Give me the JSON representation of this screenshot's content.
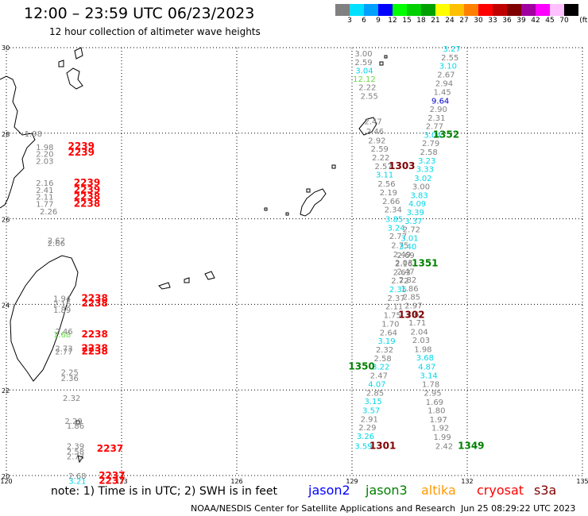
{
  "header": {
    "title": "12:00 – 23:59 UTC 06/23/2023",
    "subtitle": "12 hour collection of altimeter wave heights"
  },
  "legend": {
    "unit": "(ft)",
    "ticks": [
      "3",
      "6",
      "9",
      "12",
      "15",
      "18",
      "21",
      "24",
      "27",
      "30",
      "33",
      "36",
      "39",
      "42",
      "45",
      "70"
    ],
    "colors": [
      "#808080",
      "#00e0ff",
      "#00a0ff",
      "#0000ff",
      "#00ff00",
      "#00d000",
      "#00a000",
      "#ffff00",
      "#ffc000",
      "#ff8000",
      "#ff0000",
      "#c00000",
      "#800000",
      "#a000a0",
      "#ff00ff",
      "#ffc0ff",
      "#000000"
    ]
  },
  "axes": {
    "lat_labels": [
      "30",
      "28",
      "26",
      "24",
      "22",
      "20"
    ],
    "lon_labels": [
      "120",
      "123",
      "126",
      "129",
      "132",
      "135"
    ]
  },
  "footer": {
    "note": "note: 1) Time is in UTC; 2) SWH is in feet",
    "satellites": [
      {
        "name": "jason2",
        "color": "#0000ff"
      },
      {
        "name": "jason3",
        "color": "#008000"
      },
      {
        "name": "altika",
        "color": "#ff9900"
      },
      {
        "name": "cryosat",
        "color": "#ff0000"
      },
      {
        "name": "s3a",
        "color": "#800000"
      }
    ],
    "credit": "NOAA/NESDIS Center for Satellite Applications and Research",
    "generated": "Jun 25 08:29:22 UTC 2023"
  },
  "observations": [
    {
      "v": "3.00",
      "c": "#808080",
      "lon": 129.3,
      "lat": 29.87
    },
    {
      "v": "2.59",
      "c": "#808080",
      "lon": 129.3,
      "lat": 29.67
    },
    {
      "v": "3.04",
      "c": "#00d8e8",
      "lon": 129.32,
      "lat": 29.47
    },
    {
      "v": "12.12",
      "c": "#66dd44",
      "lon": 129.32,
      "lat": 29.28
    },
    {
      "v": "2.22",
      "c": "#808080",
      "lon": 129.4,
      "lat": 29.08
    },
    {
      "v": "2.55",
      "c": "#808080",
      "lon": 129.45,
      "lat": 28.88
    },
    {
      "v": "2.47",
      "c": "#808080",
      "lon": 129.55,
      "lat": 28.28
    },
    {
      "v": "2.46",
      "c": "#808080",
      "lon": 129.6,
      "lat": 28.05
    },
    {
      "v": "2.92",
      "c": "#808080",
      "lon": 129.65,
      "lat": 27.84
    },
    {
      "v": "2.59",
      "c": "#808080",
      "lon": 129.72,
      "lat": 27.64
    },
    {
      "v": "2.22",
      "c": "#808080",
      "lon": 129.75,
      "lat": 27.44
    },
    {
      "v": "2.57",
      "c": "#808080",
      "lon": 129.82,
      "lat": 27.24
    },
    {
      "v": "1303",
      "c": "#800000",
      "lon": 130.3,
      "lat": 27.24,
      "id": 1
    },
    {
      "v": "3.11",
      "c": "#00d8e8",
      "lon": 129.85,
      "lat": 27.04
    },
    {
      "v": "2.56",
      "c": "#808080",
      "lon": 129.9,
      "lat": 26.83
    },
    {
      "v": "2.19",
      "c": "#808080",
      "lon": 129.95,
      "lat": 26.62
    },
    {
      "v": "2.66",
      "c": "#808080",
      "lon": 130.02,
      "lat": 26.42
    },
    {
      "v": "2.34",
      "c": "#808080",
      "lon": 130.07,
      "lat": 26.22
    },
    {
      "v": "3.85",
      "c": "#00d8e8",
      "lon": 130.1,
      "lat": 26.0
    },
    {
      "v": "3.24",
      "c": "#00d8e8",
      "lon": 130.15,
      "lat": 25.8
    },
    {
      "v": "2.77",
      "c": "#808080",
      "lon": 130.2,
      "lat": 25.6
    },
    {
      "v": "2.75",
      "c": "#808080",
      "lon": 130.25,
      "lat": 25.39
    },
    {
      "v": "2.49",
      "c": "#808080",
      "lon": 130.3,
      "lat": 25.18
    },
    {
      "v": "2.03",
      "c": "#808080",
      "lon": 130.35,
      "lat": 24.98
    },
    {
      "v": "2.47",
      "c": "#808080",
      "lon": 130.4,
      "lat": 24.78
    },
    {
      "v": "2.82",
      "c": "#808080",
      "lon": 130.45,
      "lat": 24.58
    },
    {
      "v": "1.86",
      "c": "#808080",
      "lon": 130.5,
      "lat": 24.38
    },
    {
      "v": "2.85",
      "c": "#808080",
      "lon": 130.55,
      "lat": 24.18
    },
    {
      "v": "2.97",
      "c": "#808080",
      "lon": 130.6,
      "lat": 23.98
    },
    {
      "v": "2.67",
      "c": "#808080",
      "lon": 130.65,
      "lat": 23.78
    },
    {
      "v": "1.71",
      "c": "#808080",
      "lon": 130.7,
      "lat": 23.58
    },
    {
      "v": "2.04",
      "c": "#808080",
      "lon": 130.75,
      "lat": 23.37
    },
    {
      "v": "2.03",
      "c": "#808080",
      "lon": 130.8,
      "lat": 23.17
    },
    {
      "v": "1.98",
      "c": "#808080",
      "lon": 130.85,
      "lat": 22.96
    },
    {
      "v": "3.68",
      "c": "#00d8e8",
      "lon": 130.9,
      "lat": 22.76
    },
    {
      "v": "4.87",
      "c": "#00d8e8",
      "lon": 130.95,
      "lat": 22.55
    },
    {
      "v": "3.14",
      "c": "#00d8e8",
      "lon": 131.0,
      "lat": 22.35
    },
    {
      "v": "1.78",
      "c": "#808080",
      "lon": 131.05,
      "lat": 22.14
    },
    {
      "v": "2.95",
      "c": "#808080",
      "lon": 131.1,
      "lat": 21.94
    },
    {
      "v": "1.69",
      "c": "#808080",
      "lon": 131.15,
      "lat": 21.73
    },
    {
      "v": "1.80",
      "c": "#808080",
      "lon": 131.2,
      "lat": 21.53
    },
    {
      "v": "1.97",
      "c": "#808080",
      "lon": 131.25,
      "lat": 21.32
    },
    {
      "v": "1.92",
      "c": "#808080",
      "lon": 131.3,
      "lat": 21.12
    },
    {
      "v": "1.99",
      "c": "#808080",
      "lon": 131.35,
      "lat": 20.91
    },
    {
      "v": "2.42",
      "c": "#808080",
      "lon": 131.4,
      "lat": 20.7
    },
    {
      "v": "1349",
      "c": "#008000",
      "lon": 132.1,
      "lat": 20.7,
      "id": 1
    },
    {
      "v": "3.27",
      "c": "#00d8e8",
      "lon": 131.6,
      "lat": 29.98
    },
    {
      "v": "2.55",
      "c": "#808080",
      "lon": 131.55,
      "lat": 29.78
    },
    {
      "v": "3.10",
      "c": "#00d8e8",
      "lon": 131.5,
      "lat": 29.58
    },
    {
      "v": "2.67",
      "c": "#808080",
      "lon": 131.45,
      "lat": 29.38
    },
    {
      "v": "2.94",
      "c": "#808080",
      "lon": 131.4,
      "lat": 29.17
    },
    {
      "v": "1.45",
      "c": "#808080",
      "lon": 131.35,
      "lat": 28.97
    },
    {
      "v": "9.64",
      "c": "#0000cc",
      "lon": 131.3,
      "lat": 28.77
    },
    {
      "v": "2.90",
      "c": "#808080",
      "lon": 131.25,
      "lat": 28.57
    },
    {
      "v": "2.31",
      "c": "#808080",
      "lon": 131.2,
      "lat": 28.37
    },
    {
      "v": "2.77",
      "c": "#808080",
      "lon": 131.15,
      "lat": 28.17
    },
    {
      "v": "3.04",
      "c": "#00d8e8",
      "lon": 131.1,
      "lat": 27.97
    },
    {
      "v": "1352",
      "c": "#008000",
      "lon": 131.45,
      "lat": 27.97,
      "id": 1
    },
    {
      "v": "2.79",
      "c": "#808080",
      "lon": 131.05,
      "lat": 27.77
    },
    {
      "v": "2.58",
      "c": "#808080",
      "lon": 131.0,
      "lat": 27.57
    },
    {
      "v": "3.23",
      "c": "#00d8e8",
      "lon": 130.95,
      "lat": 27.37
    },
    {
      "v": "3.33",
      "c": "#00d8e8",
      "lon": 130.9,
      "lat": 27.17
    },
    {
      "v": "3.02",
      "c": "#00d8e8",
      "lon": 130.85,
      "lat": 26.96
    },
    {
      "v": "3.00",
      "c": "#808080",
      "lon": 130.8,
      "lat": 26.76
    },
    {
      "v": "3.83",
      "c": "#00d8e8",
      "lon": 130.75,
      "lat": 26.56
    },
    {
      "v": "4.09",
      "c": "#00d8e8",
      "lon": 130.7,
      "lat": 26.36
    },
    {
      "v": "3.39",
      "c": "#00d8e8",
      "lon": 130.65,
      "lat": 26.16
    },
    {
      "v": "3.37",
      "c": "#00d8e8",
      "lon": 130.6,
      "lat": 25.96
    },
    {
      "v": "2.72",
      "c": "#808080",
      "lon": 130.55,
      "lat": 25.76
    },
    {
      "v": "3.01",
      "c": "#00d8e8",
      "lon": 130.5,
      "lat": 25.56
    },
    {
      "v": "3.40",
      "c": "#00d8e8",
      "lon": 130.45,
      "lat": 25.36
    },
    {
      "v": "2.69",
      "c": "#808080",
      "lon": 130.4,
      "lat": 25.16
    },
    {
      "v": "2.16",
      "c": "#808080",
      "lon": 130.35,
      "lat": 24.96
    },
    {
      "v": "1351",
      "c": "#008000",
      "lon": 130.9,
      "lat": 24.96,
      "id": 1
    },
    {
      "v": "2.63",
      "c": "#808080",
      "lon": 130.3,
      "lat": 24.76
    },
    {
      "v": "2.72",
      "c": "#808080",
      "lon": 130.25,
      "lat": 24.56
    },
    {
      "v": "2.35",
      "c": "#00d8e8",
      "lon": 130.2,
      "lat": 24.36
    },
    {
      "v": "2.37",
      "c": "#808080",
      "lon": 130.15,
      "lat": 24.16
    },
    {
      "v": "2.11",
      "c": "#808080",
      "lon": 130.1,
      "lat": 23.96
    },
    {
      "v": "1.75",
      "c": "#808080",
      "lon": 130.05,
      "lat": 23.76
    },
    {
      "v": "1302",
      "c": "#800000",
      "lon": 130.55,
      "lat": 23.76,
      "id": 1
    },
    {
      "v": "1.70",
      "c": "#808080",
      "lon": 130.0,
      "lat": 23.55
    },
    {
      "v": "2.64",
      "c": "#808080",
      "lon": 129.95,
      "lat": 23.35
    },
    {
      "v": "3.19",
      "c": "#00d8e8",
      "lon": 129.9,
      "lat": 23.15
    },
    {
      "v": "2.32",
      "c": "#808080",
      "lon": 129.85,
      "lat": 22.95
    },
    {
      "v": "2.58",
      "c": "#808080",
      "lon": 129.8,
      "lat": 22.75
    },
    {
      "v": "3.22",
      "c": "#00d8e8",
      "lon": 129.75,
      "lat": 22.55
    },
    {
      "v": "1350",
      "c": "#008000",
      "lon": 129.25,
      "lat": 22.55,
      "id": 1
    },
    {
      "v": "2.47",
      "c": "#808080",
      "lon": 129.7,
      "lat": 22.35
    },
    {
      "v": "4.07",
      "c": "#00d8e8",
      "lon": 129.65,
      "lat": 22.14
    },
    {
      "v": "2.85",
      "c": "#808080",
      "lon": 129.6,
      "lat": 21.94
    },
    {
      "v": "3.15",
      "c": "#00d8e8",
      "lon": 129.55,
      "lat": 21.74
    },
    {
      "v": "3.57",
      "c": "#00d8e8",
      "lon": 129.5,
      "lat": 21.53
    },
    {
      "v": "2.91",
      "c": "#808080",
      "lon": 129.45,
      "lat": 21.33
    },
    {
      "v": "2.29",
      "c": "#808080",
      "lon": 129.4,
      "lat": 21.13
    },
    {
      "v": "3.26",
      "c": "#00d8e8",
      "lon": 129.35,
      "lat": 20.93
    },
    {
      "v": "3.59",
      "c": "#00d8e8",
      "lon": 129.3,
      "lat": 20.7
    },
    {
      "v": "1301",
      "c": "#800000",
      "lon": 129.8,
      "lat": 20.7,
      "id": 1
    },
    {
      "v": "1.98",
      "c": "#808080",
      "lon": 120.7,
      "lat": 28.0
    },
    {
      "v": "1.98",
      "c": "#808080",
      "lon": 121.0,
      "lat": 27.68
    },
    {
      "v": "2.20",
      "c": "#808080",
      "lon": 121.0,
      "lat": 27.52
    },
    {
      "v": "2.03",
      "c": "#808080",
      "lon": 121.0,
      "lat": 27.36
    },
    {
      "v": "2239",
      "c": "#ff0000",
      "lon": 121.95,
      "lat": 27.7,
      "id": 1
    },
    {
      "v": "2239",
      "c": "#ff0000",
      "lon": 121.95,
      "lat": 27.55,
      "id": 1
    },
    {
      "v": "2.16",
      "c": "#808080",
      "lon": 121.0,
      "lat": 26.85
    },
    {
      "v": "2.41",
      "c": "#808080",
      "lon": 121.0,
      "lat": 26.68
    },
    {
      "v": "2.11",
      "c": "#808080",
      "lon": 121.0,
      "lat": 26.52
    },
    {
      "v": "1.77",
      "c": "#808080",
      "lon": 121.0,
      "lat": 26.35
    },
    {
      "v": "2.26",
      "c": "#808080",
      "lon": 121.1,
      "lat": 26.18
    },
    {
      "v": "2239",
      "c": "#ff0000",
      "lon": 122.1,
      "lat": 26.85,
      "id": 1
    },
    {
      "v": "2239",
      "c": "#ff0000",
      "lon": 122.1,
      "lat": 26.68,
      "id": 1
    },
    {
      "v": "2238",
      "c": "#ff0000",
      "lon": 122.1,
      "lat": 26.52,
      "id": 1
    },
    {
      "v": "2238",
      "c": "#ff0000",
      "lon": 122.1,
      "lat": 26.35,
      "id": 1
    },
    {
      "v": "2.62",
      "c": "#808080",
      "lon": 121.3,
      "lat": 25.5
    },
    {
      "v": "2.66",
      "c": "#808080",
      "lon": 121.3,
      "lat": 25.44
    },
    {
      "v": "1.94",
      "c": "#808080",
      "lon": 121.45,
      "lat": 24.15
    },
    {
      "v": "2.16",
      "c": "#808080",
      "lon": 121.45,
      "lat": 24.02
    },
    {
      "v": "1.89",
      "c": "#808080",
      "lon": 121.45,
      "lat": 23.88
    },
    {
      "v": "2238",
      "c": "#ff0000",
      "lon": 122.3,
      "lat": 24.15,
      "id": 1
    },
    {
      "v": "2238",
      "c": "#ff0000",
      "lon": 122.3,
      "lat": 24.03,
      "id": 1
    },
    {
      "v": "1.68",
      "c": "#66dd44",
      "lon": 121.45,
      "lat": 23.3
    },
    {
      "v": "2.46",
      "c": "#808080",
      "lon": 121.5,
      "lat": 23.38
    },
    {
      "v": "2238",
      "c": "#ff0000",
      "lon": 122.3,
      "lat": 23.3,
      "id": 1
    },
    {
      "v": "2.73",
      "c": "#808080",
      "lon": 121.5,
      "lat": 22.98
    },
    {
      "v": "2.77",
      "c": "#808080",
      "lon": 121.5,
      "lat": 22.9
    },
    {
      "v": "2238",
      "c": "#ff0000",
      "lon": 122.3,
      "lat": 22.98,
      "id": 1
    },
    {
      "v": "2238",
      "c": "#ff0000",
      "lon": 122.3,
      "lat": 22.9,
      "id": 1
    },
    {
      "v": "2.25",
      "c": "#808080",
      "lon": 121.65,
      "lat": 22.42
    },
    {
      "v": "2.36",
      "c": "#808080",
      "lon": 121.65,
      "lat": 22.28
    },
    {
      "v": "2.32",
      "c": "#808080",
      "lon": 121.7,
      "lat": 21.82
    },
    {
      "v": "2.29",
      "c": "#808080",
      "lon": 121.75,
      "lat": 21.28
    },
    {
      "v": "1.86",
      "c": "#808080",
      "lon": 121.8,
      "lat": 21.17
    },
    {
      "v": "2.39",
      "c": "#808080",
      "lon": 121.8,
      "lat": 20.7
    },
    {
      "v": "2.58",
      "c": "#808080",
      "lon": 121.8,
      "lat": 20.57
    },
    {
      "v": "2.73",
      "c": "#808080",
      "lon": 121.8,
      "lat": 20.45
    },
    {
      "v": "2237",
      "c": "#ff0000",
      "lon": 122.7,
      "lat": 20.63,
      "id": 1
    },
    {
      "v": "2.68",
      "c": "#808080",
      "lon": 121.85,
      "lat": 20.0
    },
    {
      "v": "3.21",
      "c": "#00d8e8",
      "lon": 121.85,
      "lat": 19.88
    },
    {
      "v": "2237",
      "c": "#ff0000",
      "lon": 122.75,
      "lat": 20.0,
      "id": 1
    },
    {
      "v": "2237",
      "c": "#ff0000",
      "lon": 122.75,
      "lat": 19.88,
      "id": 1
    }
  ]
}
